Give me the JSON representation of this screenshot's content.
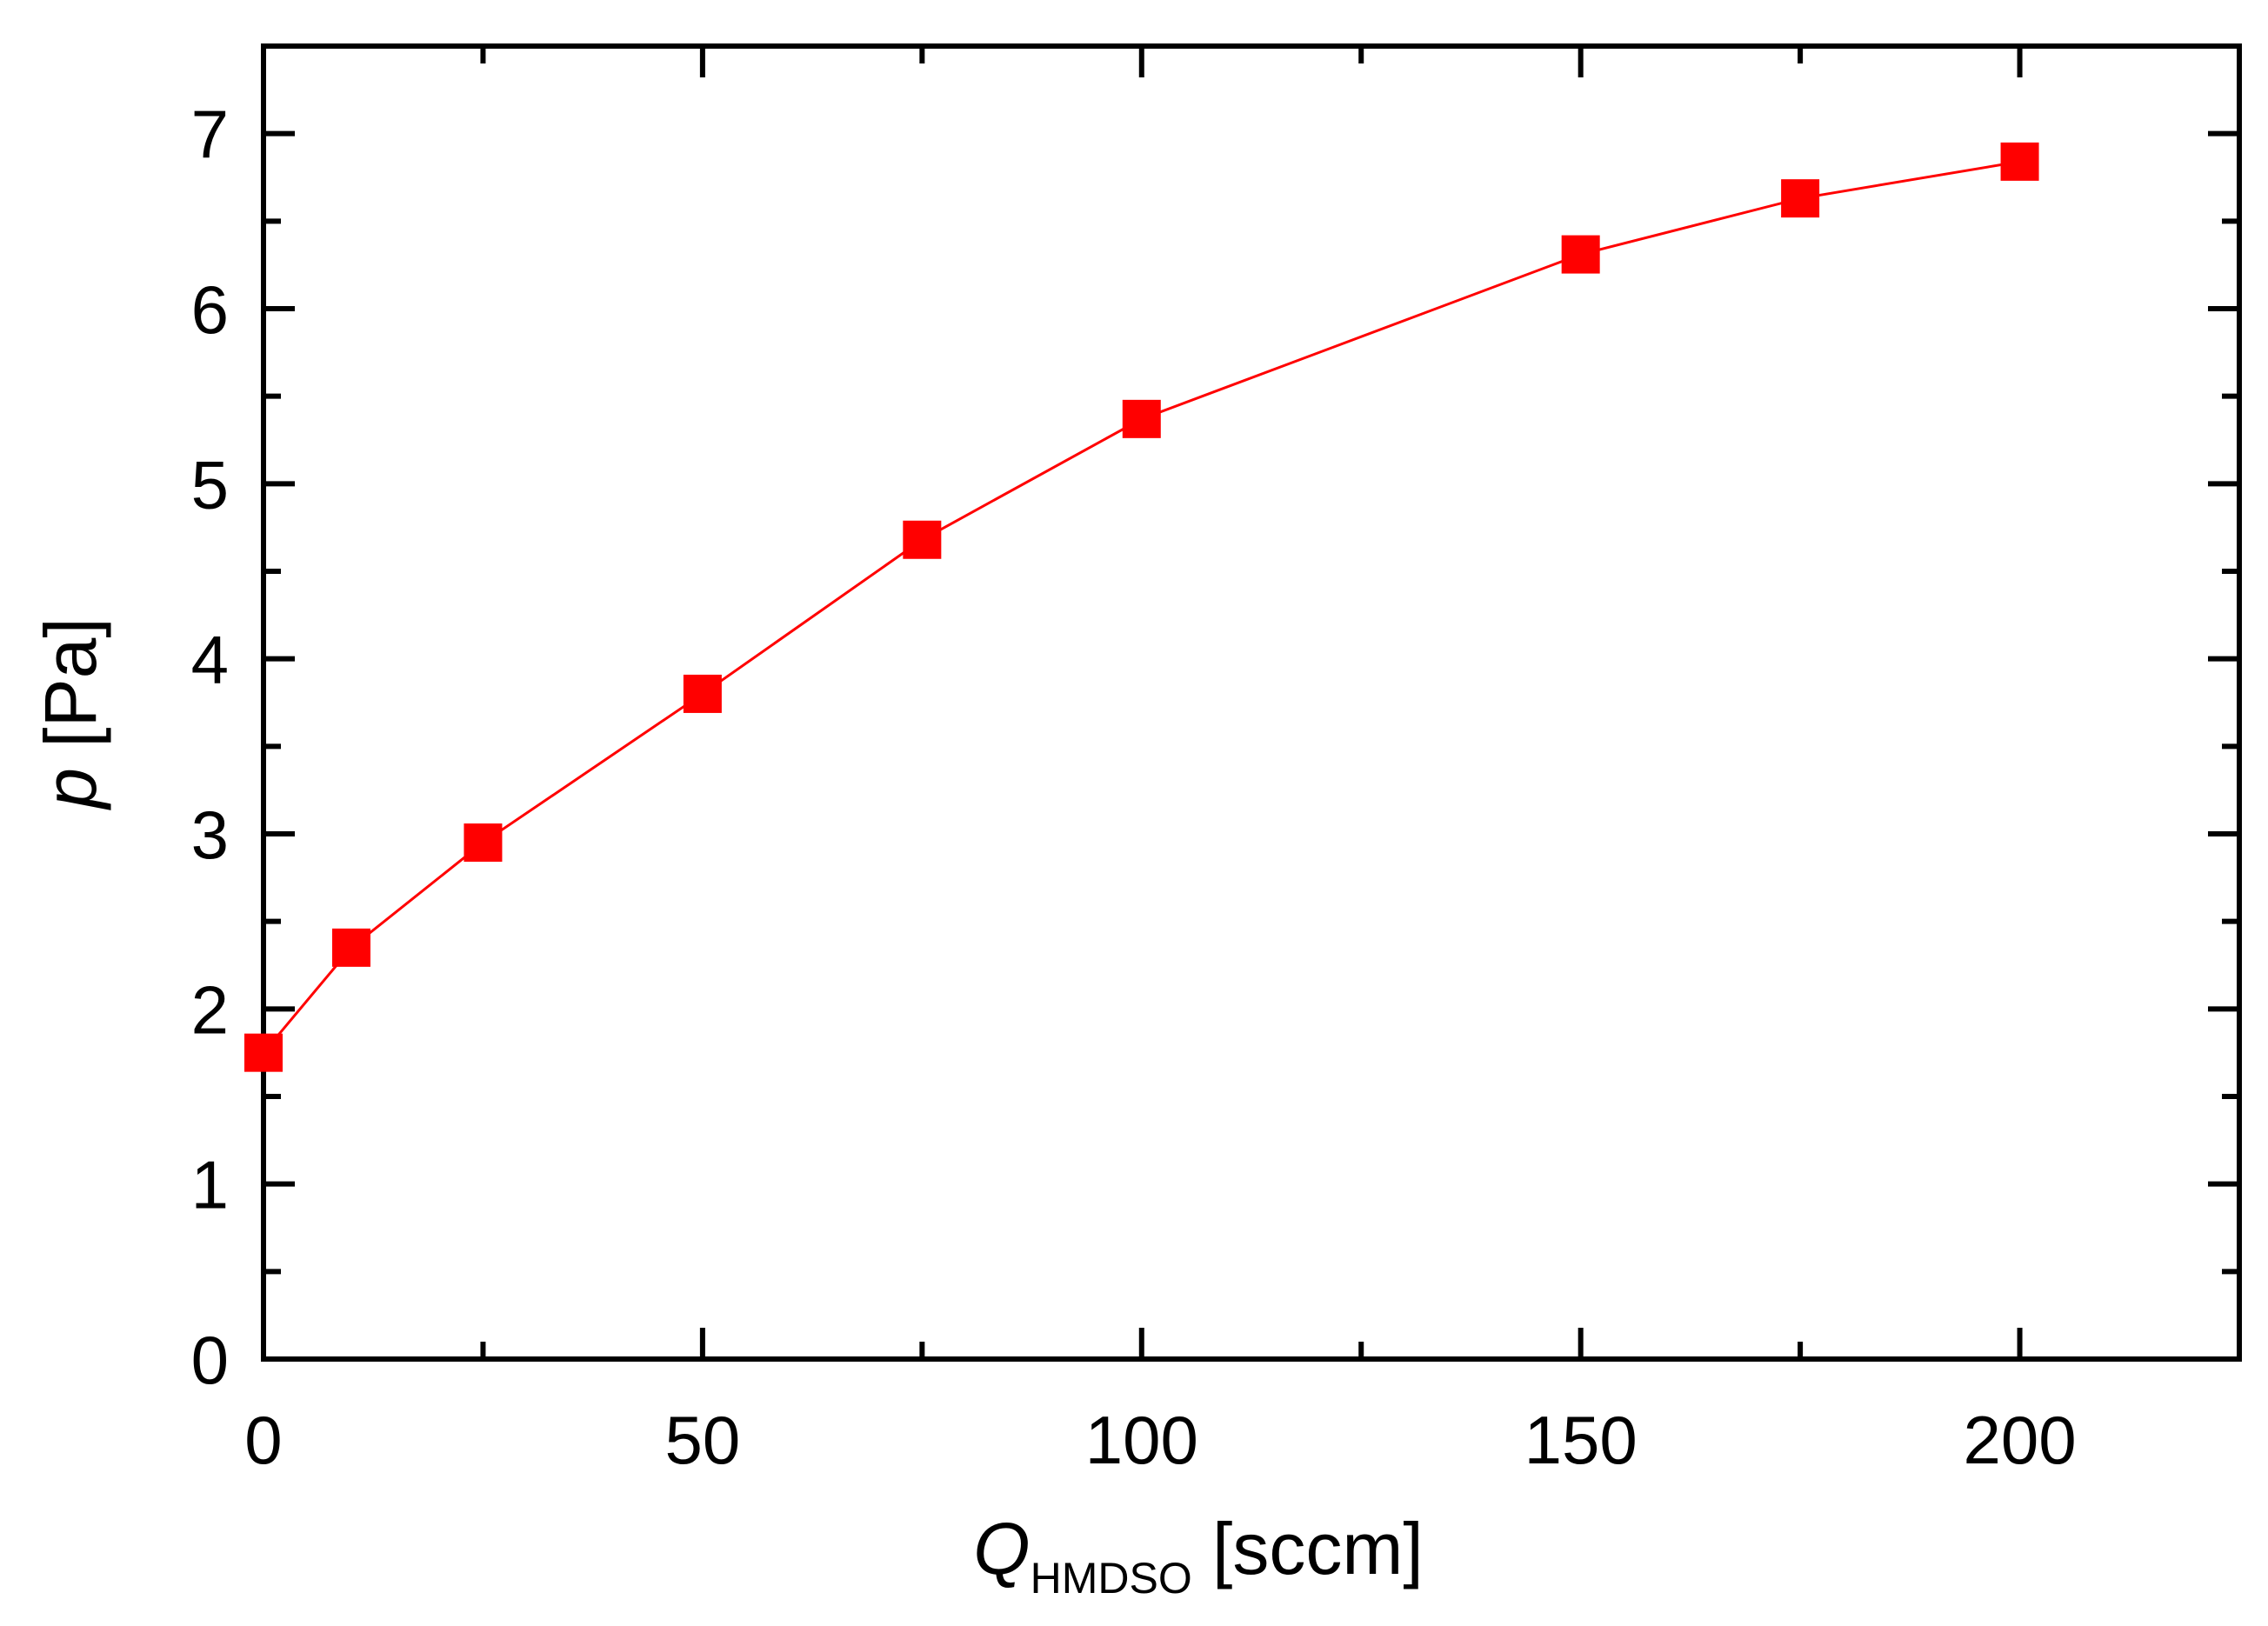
{
  "chart_data": {
    "type": "line",
    "title": "",
    "xlabel": {
      "symbol": "Q",
      "subscript": "HMDSO",
      "unit": " [sccm]"
    },
    "ylabel": {
      "symbol": "p",
      "unit": " [Pa]"
    },
    "xlim": [
      0,
      225
    ],
    "ylim": [
      0,
      7.5
    ],
    "x_ticks": [
      0,
      50,
      100,
      150,
      200
    ],
    "x_minor_ticks": [
      25,
      75,
      125,
      175,
      225
    ],
    "y_ticks": [
      0,
      1,
      2,
      3,
      4,
      5,
      6,
      7
    ],
    "y_minor_ticks": [
      0.5,
      1.5,
      2.5,
      3.5,
      4.5,
      5.5,
      6.5,
      7.5
    ],
    "grid": false,
    "legend": "none",
    "series": [
      {
        "color": "#ff0000",
        "marker": "square",
        "x": [
          0,
          10,
          25,
          50,
          75,
          100,
          150,
          175,
          200
        ],
        "y": [
          1.75,
          2.35,
          2.95,
          3.8,
          4.68,
          5.37,
          6.31,
          6.63,
          6.84
        ]
      }
    ]
  }
}
